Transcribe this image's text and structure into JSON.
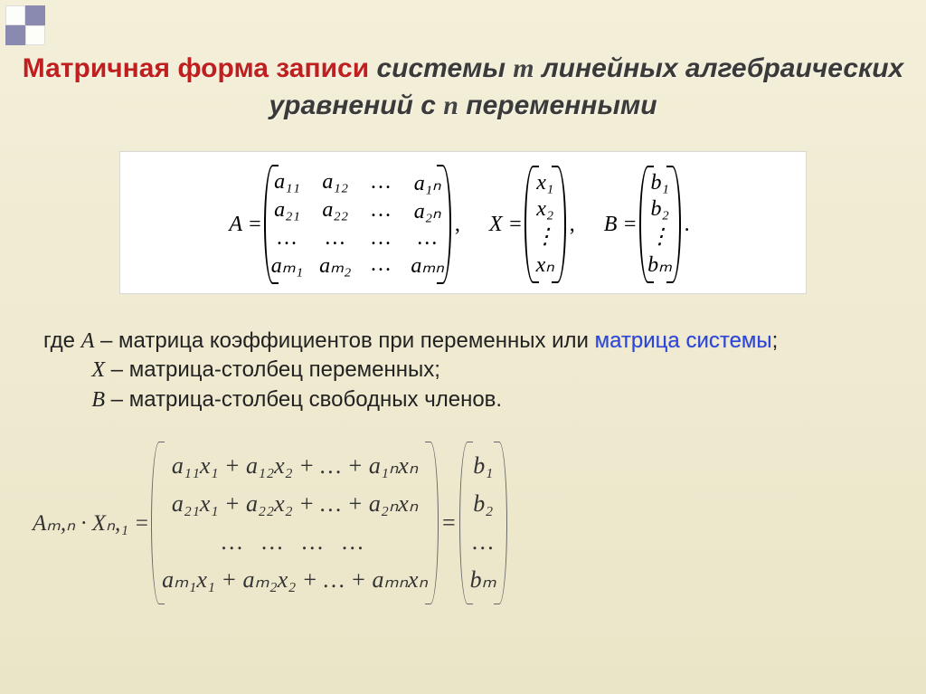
{
  "title": {
    "part1_red": "Матричная форма записи",
    "part2": " системы ",
    "m": "m",
    "part3": " линейных алгебраических уравнений с ",
    "n": "n",
    "part4": " переменными"
  },
  "matrixA": {
    "label": "A =",
    "rows": [
      [
        "a₁₁",
        "a₁₂",
        "…",
        "a₁ₙ"
      ],
      [
        "a₂₁",
        "a₂₂",
        "…",
        "a₂ₙ"
      ],
      [
        "…",
        "…",
        "…",
        "…"
      ],
      [
        "aₘ₁",
        "aₘ₂",
        "…",
        "aₘₙ"
      ]
    ]
  },
  "sepComma": ",",
  "matrixX": {
    "label": "X =",
    "rows": [
      "x₁",
      "x₂",
      "⋮",
      "xₙ"
    ]
  },
  "matrixB": {
    "label": "B =",
    "rows": [
      "b₁",
      "b₂",
      "⋮",
      "bₘ"
    ]
  },
  "period": ".",
  "desc": {
    "where": "где  ",
    "A": "A",
    "Atext": " – матрица коэффициентов при переменных или ",
    "Ahl": "матрица системы",
    "semi": ";",
    "X": "X",
    "Xtext": " – матрица-столбец переменных;",
    "B": "B",
    "Btext": " – матрица-столбец свободных членов."
  },
  "eq2": {
    "lhs": "Aₘ,ₙ · Xₙ,₁ =",
    "rows": [
      "a₁₁x₁ + a₁₂x₂ + … + a₁ₙxₙ",
      "a₂₁x₁ + a₂₂x₂ + … + a₂ₙxₙ",
      "…     …     …     …",
      "aₘ₁x₁ + aₘ₂x₂ + … + aₘₙxₙ"
    ],
    "eq": "=",
    "bcol": [
      "b₁",
      "b₂",
      "…",
      "bₘ"
    ]
  },
  "colors": {
    "background_top": "#f3efd9",
    "background_bottom": "#ebe5c8",
    "title_red": "#bf1f1f",
    "highlight_blue": "#2a45d8",
    "box_bg": "#ffffff",
    "box_border": "#d8d8d8",
    "corner_blue": "#8a8ab0"
  }
}
